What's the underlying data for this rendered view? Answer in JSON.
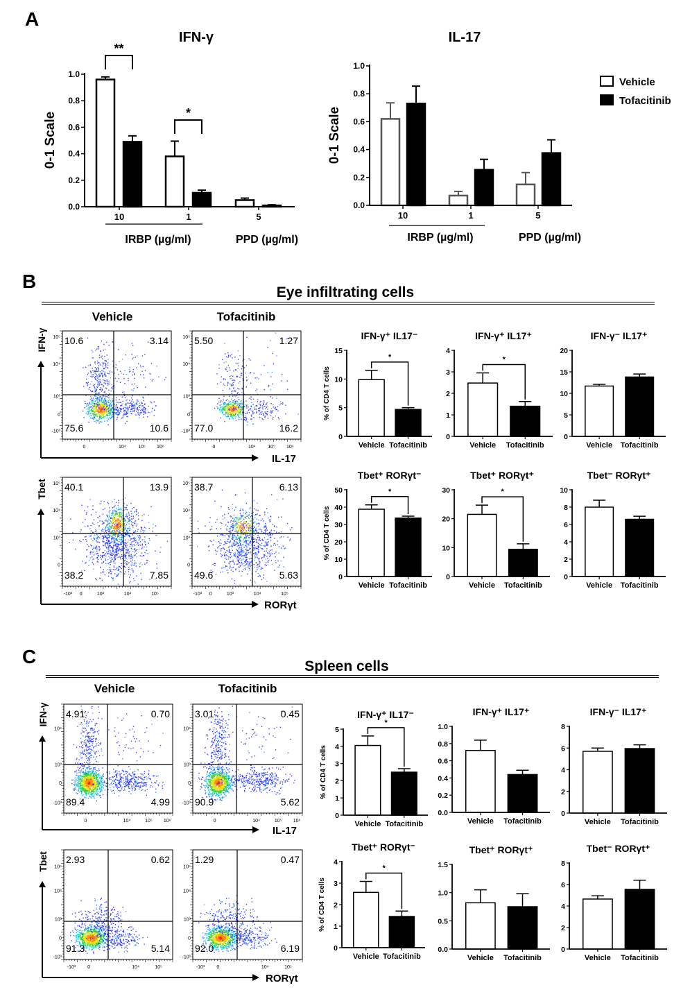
{
  "panels": {
    "A": {
      "letter": "A"
    },
    "B": {
      "letter": "B",
      "title": "Eye infiltrating cells",
      "col_vehicle": "Vehicle",
      "col_tofacitinib": "Tofacitinib",
      "x_top": "IL-17",
      "y_top": "IFN-γ",
      "x_bottom": "RORγt",
      "y_bottom": "Tbet"
    },
    "C": {
      "letter": "C",
      "title": "Spleen cells",
      "col_vehicle": "Vehicle",
      "col_tofacitinib": "Tofacitinib",
      "x_top": "IL-17",
      "y_top": "IFN-γ",
      "x_bottom": "RORγt",
      "y_bottom": "Tbet"
    }
  },
  "legend": {
    "vehicle": "Vehicle",
    "tofacitinib": "Tofacitinib"
  },
  "colors": {
    "vehicle_fill": "#ffffff",
    "tofacitinib_fill": "#000000",
    "axis": "#000000"
  },
  "chart_data": [
    {
      "id": "A1",
      "type": "bar",
      "title": "IFN-γ",
      "ylabel": "0-1 Scale",
      "ylim": [
        0,
        1.0
      ],
      "yticks": [
        "0.0",
        "0.2",
        "0.4",
        "0.6",
        "0.8",
        "1.0"
      ],
      "categories": [
        "10",
        "1",
        "5"
      ],
      "category_groups": [
        {
          "label": "IRBP (µg/ml)",
          "categories": [
            "10",
            "1"
          ],
          "underline": true
        },
        {
          "label": "PPD (µg/ml)",
          "categories": [
            "5"
          ],
          "underline": false
        }
      ],
      "series": [
        {
          "name": "Vehicle",
          "values": [
            0.96,
            0.38,
            0.05
          ],
          "errors": [
            0.02,
            0.115,
            0.015
          ]
        },
        {
          "name": "Tofacitinib",
          "values": [
            0.49,
            0.105,
            0.01
          ],
          "errors": [
            0.045,
            0.02,
            0.005
          ]
        }
      ],
      "significance": [
        {
          "category": "10",
          "label": "**"
        },
        {
          "category": "1",
          "label": "*"
        }
      ]
    },
    {
      "id": "A2",
      "type": "bar",
      "title": "IL-17",
      "ylabel": "0-1 Scale",
      "ylim": [
        0,
        1.0
      ],
      "yticks": [
        "0.0",
        "0.2",
        "0.4",
        "0.6",
        "0.8",
        "1.0"
      ],
      "categories": [
        "10",
        "1",
        "5"
      ],
      "category_groups": [
        {
          "label": "IRBP (µg/ml)",
          "categories": [
            "10",
            "1"
          ],
          "underline": true
        },
        {
          "label": "PPD (µg/ml)",
          "categories": [
            "5"
          ],
          "underline": false
        }
      ],
      "series": [
        {
          "name": "Vehicle",
          "values": [
            0.62,
            0.07,
            0.15
          ],
          "errors": [
            0.115,
            0.03,
            0.085
          ]
        },
        {
          "name": "Tofacitinib",
          "values": [
            0.73,
            0.255,
            0.375
          ],
          "errors": [
            0.125,
            0.075,
            0.095
          ]
        }
      ],
      "significance": [],
      "legend": "top-right"
    },
    {
      "id": "B1",
      "type": "bar",
      "title": "IFN-γ⁺ IL17⁻",
      "ylabel": "% of CD4 T cells",
      "ylim": [
        0,
        15
      ],
      "yticks": [
        "0",
        "5",
        "10",
        "15"
      ],
      "categories": [
        "Vehicle",
        "Tofacitinib"
      ],
      "values": [
        9.9,
        4.7
      ],
      "errors": [
        1.6,
        0.3
      ],
      "significant": true,
      "sig_label": "*"
    },
    {
      "id": "B2",
      "type": "bar",
      "title": "IFN-γ⁺ IL17⁺",
      "ylabel": "",
      "ylim": [
        0,
        4
      ],
      "yticks": [
        "0",
        "1",
        "2",
        "3",
        "4"
      ],
      "categories": [
        "Vehicle",
        "Tofacitinib"
      ],
      "values": [
        2.48,
        1.4
      ],
      "errors": [
        0.47,
        0.22
      ],
      "significant": true,
      "sig_label": "*"
    },
    {
      "id": "B3",
      "type": "bar",
      "title": "IFN-γ⁻ IL17⁺",
      "ylabel": "",
      "ylim": [
        0,
        20
      ],
      "yticks": [
        "0",
        "5",
        "10",
        "15",
        "20"
      ],
      "categories": [
        "Vehicle",
        "Tofacitinib"
      ],
      "values": [
        11.7,
        13.8
      ],
      "errors": [
        0.4,
        0.7
      ],
      "significant": false
    },
    {
      "id": "B4",
      "type": "bar",
      "title": "Tbet⁺ RORγt⁻",
      "ylabel": "% of CD4 T cells",
      "ylim": [
        0,
        50
      ],
      "yticks": [
        "0",
        "10",
        "20",
        "30",
        "40",
        "50"
      ],
      "categories": [
        "Vehicle",
        "Tofacitinib"
      ],
      "values": [
        38.8,
        33.7
      ],
      "errors": [
        2.5,
        1.1
      ],
      "significant": true,
      "sig_label": "*"
    },
    {
      "id": "B5",
      "type": "bar",
      "title": "Tbet⁺ RORγt⁺",
      "ylabel": "",
      "ylim": [
        0,
        30
      ],
      "yticks": [
        "0",
        "10",
        "20",
        "30"
      ],
      "categories": [
        "Vehicle",
        "Tofacitinib"
      ],
      "values": [
        21.5,
        9.4
      ],
      "errors": [
        3.2,
        1.9
      ],
      "significant": true,
      "sig_label": "*"
    },
    {
      "id": "B6",
      "type": "bar",
      "title": "Tbet⁻ RORγt⁺",
      "ylabel": "",
      "ylim": [
        0,
        10
      ],
      "yticks": [
        "0",
        "2",
        "4",
        "6",
        "8",
        "10"
      ],
      "categories": [
        "Vehicle",
        "Tofacitinib"
      ],
      "values": [
        8.0,
        6.6
      ],
      "errors": [
        0.8,
        0.35
      ],
      "significant": false
    },
    {
      "id": "C1",
      "type": "bar",
      "title": "IFN-γ⁺ IL17⁻",
      "ylabel": "% of CD4 T cells",
      "ylim": [
        0,
        5
      ],
      "yticks": [
        "0",
        "1",
        "2",
        "3",
        "4",
        "5"
      ],
      "categories": [
        "Vehicle",
        "Tofacitinib"
      ],
      "values": [
        4.05,
        2.5
      ],
      "errors": [
        0.55,
        0.2
      ],
      "significant": true,
      "sig_label": "*"
    },
    {
      "id": "C2",
      "type": "bar",
      "title": "IFN-γ⁺ IL17⁺",
      "ylabel": "",
      "ylim": [
        0,
        1.0
      ],
      "yticks": [
        "0.0",
        "0.2",
        "0.4",
        "0.6",
        "0.8",
        "1.0"
      ],
      "categories": [
        "Vehicle",
        "Tofacitinib"
      ],
      "values": [
        0.72,
        0.44
      ],
      "errors": [
        0.12,
        0.05
      ],
      "significant": false
    },
    {
      "id": "C3",
      "type": "bar",
      "title": "IFN-γ⁻ IL17⁺",
      "ylabel": "",
      "ylim": [
        0,
        8
      ],
      "yticks": [
        "0",
        "2",
        "4",
        "6",
        "8"
      ],
      "categories": [
        "Vehicle",
        "Tofacitinib"
      ],
      "values": [
        5.7,
        5.95
      ],
      "errors": [
        0.3,
        0.35
      ],
      "significant": false
    },
    {
      "id": "C4",
      "type": "bar",
      "title": "Tbet⁺ RORγt⁻",
      "ylabel": "% of CD4 T cells",
      "ylim": [
        0,
        4
      ],
      "yticks": [
        "0",
        "1",
        "2",
        "3",
        "4"
      ],
      "categories": [
        "Vehicle",
        "Tofacitinib"
      ],
      "values": [
        2.57,
        1.45
      ],
      "errors": [
        0.51,
        0.25
      ],
      "significant": true,
      "sig_label": "*"
    },
    {
      "id": "C5",
      "type": "bar",
      "title": "Tbet⁺ RORγt⁺",
      "ylabel": "",
      "ylim": [
        0,
        1.5
      ],
      "yticks": [
        "0.0",
        "0.5",
        "1.0",
        "1.5"
      ],
      "categories": [
        "Vehicle",
        "Tofacitinib"
      ],
      "values": [
        0.82,
        0.75
      ],
      "errors": [
        0.23,
        0.23
      ],
      "significant": false
    },
    {
      "id": "C6",
      "type": "bar",
      "title": "Tbet⁻ RORγt⁺",
      "ylabel": "",
      "ylim": [
        0,
        8
      ],
      "yticks": [
        "0",
        "2",
        "4",
        "6",
        "8"
      ],
      "categories": [
        "Vehicle",
        "Tofacitinib"
      ],
      "values": [
        4.65,
        5.55
      ],
      "errors": [
        0.3,
        0.85
      ],
      "significant": false
    },
    {
      "id": "FB1",
      "type": "scatter",
      "group": "Vehicle",
      "xlabel": "IL-17",
      "ylabel": "IFN-γ",
      "quadrants": {
        "upper_left": "10.6",
        "upper_right": "3.14",
        "lower_left": "75.6",
        "lower_right": "10.6"
      },
      "yticks": [
        "10⁵",
        "10⁴",
        "10³",
        "0",
        "-10³"
      ],
      "xticks": [
        "0",
        "10⁴",
        "10⁵",
        "10⁶"
      ]
    },
    {
      "id": "FB2",
      "type": "scatter",
      "group": "Tofacitinib",
      "xlabel": "IL-17",
      "ylabel": "IFN-γ",
      "quadrants": {
        "upper_left": "5.50",
        "upper_right": "1.27",
        "lower_left": "77.0",
        "lower_right": "16.2"
      },
      "yticks": [
        "10⁵",
        "10⁴",
        "10³",
        "0",
        "-10³"
      ],
      "xticks": [
        "0",
        "10⁴",
        "10⁵",
        "10⁶"
      ]
    },
    {
      "id": "FB3",
      "type": "scatter",
      "group": "Vehicle",
      "xlabel": "RORγt",
      "ylabel": "Tbet",
      "quadrants": {
        "upper_left": "40.1",
        "upper_right": "13.9",
        "lower_left": "38.2",
        "lower_right": "7.85"
      },
      "yticks": [
        "10⁵",
        "10⁴",
        "10³",
        "0"
      ],
      "xticks": [
        "-10³",
        "0",
        "10³",
        "10⁴",
        "10⁵"
      ]
    },
    {
      "id": "FB4",
      "type": "scatter",
      "group": "Tofacitinib",
      "xlabel": "RORγt",
      "ylabel": "Tbet",
      "quadrants": {
        "upper_left": "38.7",
        "upper_right": "6.13",
        "lower_left": "49.6",
        "lower_right": "5.63"
      },
      "yticks": [
        "10⁵",
        "10⁴",
        "10³",
        "0"
      ],
      "xticks": [
        "-10³",
        "0",
        "10³",
        "10⁴",
        "10⁵"
      ]
    },
    {
      "id": "FC1",
      "type": "scatter",
      "group": "Vehicle",
      "xlabel": "IL-17",
      "ylabel": "IFN-γ",
      "quadrants": {
        "upper_left": "4.91",
        "upper_right": "0.70",
        "lower_left": "89.4",
        "lower_right": "4.99"
      },
      "yticks": [
        "10⁴",
        "10³",
        "0",
        "-10³"
      ],
      "xticks": [
        "0",
        "10⁴",
        "10⁵",
        "10⁶"
      ]
    },
    {
      "id": "FC2",
      "type": "scatter",
      "group": "Tofacitinib",
      "xlabel": "IL-17",
      "ylabel": "IFN-γ",
      "quadrants": {
        "upper_left": "3.01",
        "upper_right": "0.45",
        "lower_left": "90.9",
        "lower_right": "5.62"
      },
      "yticks": [
        "10⁴",
        "10³",
        "0",
        "-10³"
      ],
      "xticks": [
        "0",
        "10⁴",
        "10⁵",
        "10⁶"
      ]
    },
    {
      "id": "FC3",
      "type": "scatter",
      "group": "Vehicle",
      "xlabel": "RORγt",
      "ylabel": "Tbet",
      "quadrants": {
        "upper_left": "2.93",
        "upper_right": "0.62",
        "lower_left": "91.3",
        "lower_right": "5.14"
      },
      "yticks": [
        "10⁵",
        "10⁴",
        "10³",
        "0",
        "-10³"
      ],
      "xticks": [
        "-10³",
        "0",
        "10⁴",
        "10⁵"
      ]
    },
    {
      "id": "FC4",
      "type": "scatter",
      "group": "Tofacitinib",
      "xlabel": "RORγt",
      "ylabel": "Tbet",
      "quadrants": {
        "upper_left": "1.29",
        "upper_right": "0.47",
        "lower_left": "92.0",
        "lower_right": "6.19"
      },
      "yticks": [
        "10⁵",
        "10⁴",
        "10³",
        "0",
        "-10³"
      ],
      "xticks": [
        "-10³",
        "0",
        "10⁴",
        "10⁵"
      ]
    }
  ]
}
